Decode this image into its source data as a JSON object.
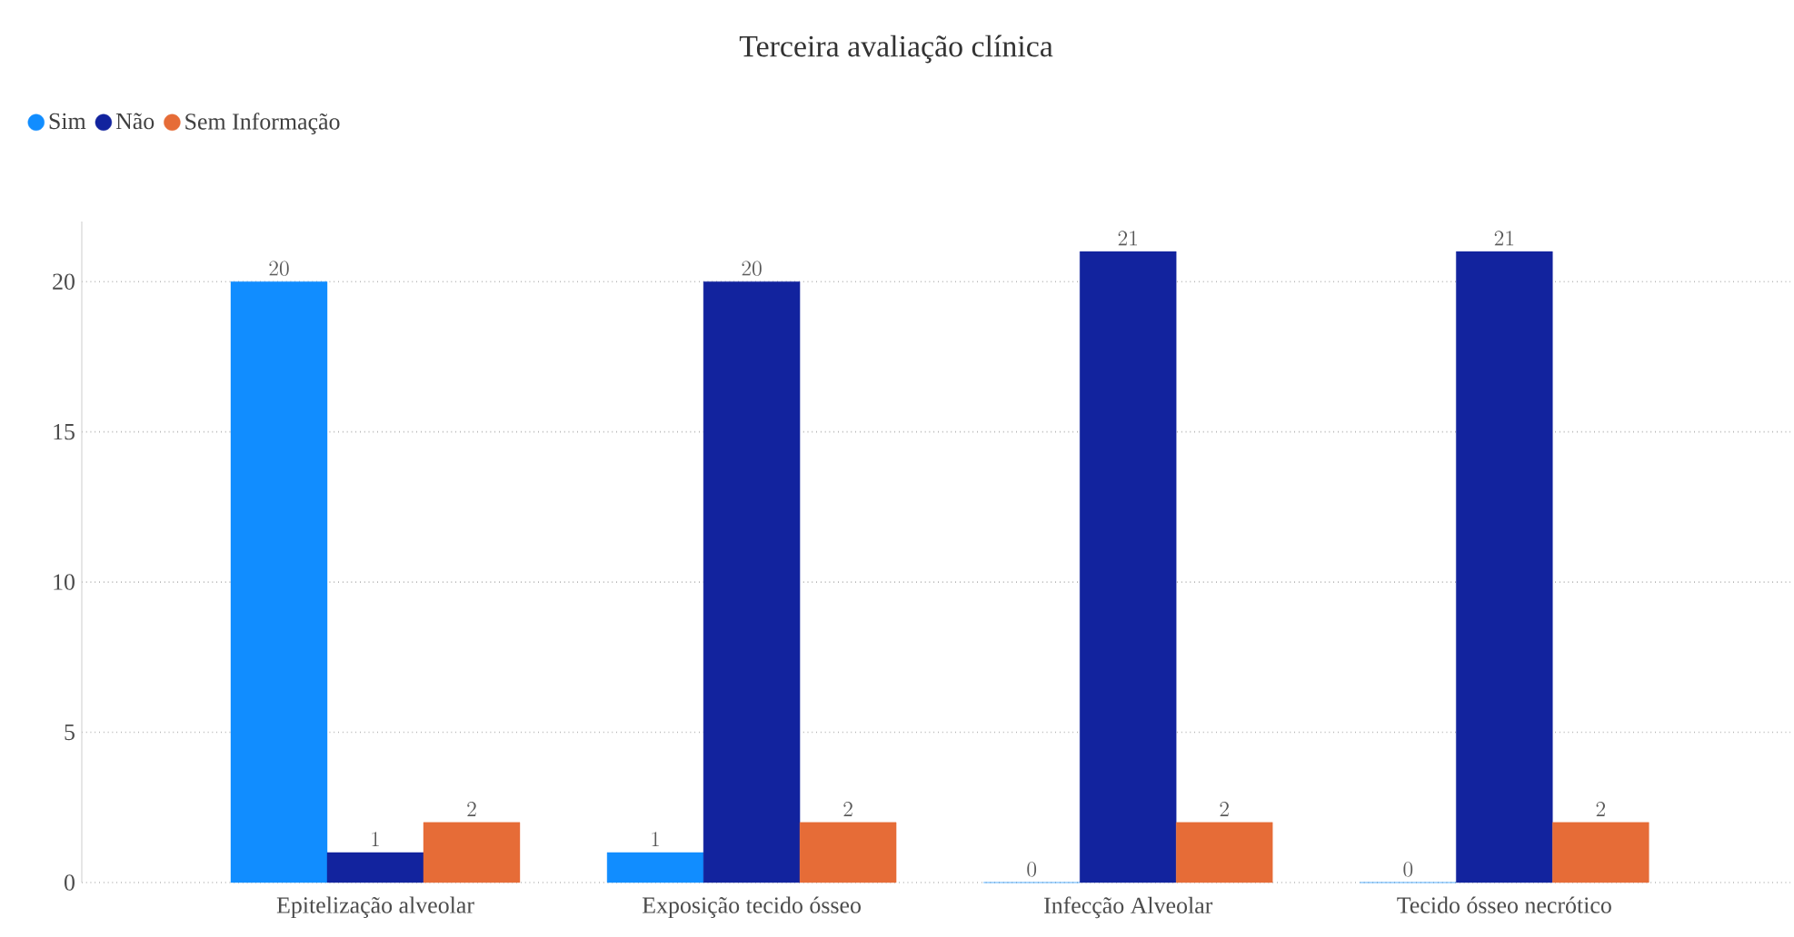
{
  "chart_data": {
    "type": "bar",
    "title": "Terceira avaliação clínica",
    "categories": [
      "Epitelização alveolar",
      "Exposição tecido ósseo",
      "Infecção Alveolar",
      "Tecido ósseo necrótico"
    ],
    "series": [
      {
        "name": "Sim",
        "color": "#118dff",
        "values": [
          20,
          1,
          0,
          0
        ]
      },
      {
        "name": "Não",
        "color": "#12239e",
        "values": [
          1,
          20,
          21,
          21
        ]
      },
      {
        "name": "Sem Informação",
        "color": "#e66c37",
        "values": [
          2,
          2,
          2,
          2
        ]
      }
    ],
    "ylim": [
      0,
      22
    ],
    "yticks": [
      0,
      5,
      10,
      15,
      20
    ],
    "grid": "y",
    "legend": "top left",
    "data_labels": true
  }
}
